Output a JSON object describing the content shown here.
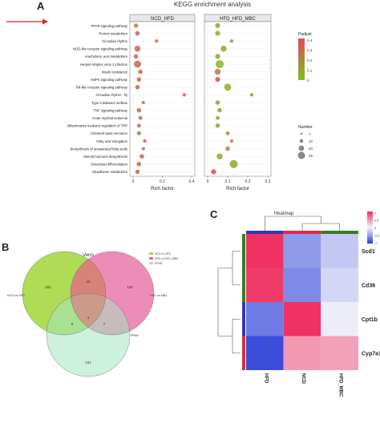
{
  "panels": {
    "a": {
      "letter": "A"
    },
    "b": {
      "letter": "B"
    },
    "c": {
      "letter": "C"
    }
  },
  "chart_data": [
    {
      "type": "scatter",
      "title": "KEGG enrichment analysis",
      "xlabel": "Rich factor",
      "facets": [
        {
          "name": "NCD_HFD",
          "xlim": [
            0,
            0.4
          ],
          "xticks": [
            "0",
            "0.2",
            "0.4"
          ]
        },
        {
          "name": "HFD_HFD_MBC",
          "xlim": [
            0,
            0.3
          ],
          "xticks": [
            "0",
            "0.1",
            "0.2",
            "0.3"
          ]
        }
      ],
      "pathways": [
        "PPAR signaling pathway",
        "Retinol metabolism",
        "Circadian rhythm",
        "NOD-like receptor signaling pathway",
        "Arachidonic acid metabolism",
        "Herpes simplex virus 1 infection",
        "Insulin resistance",
        "AMPK signaling pathway",
        "Toll-like receptor signaling pathway",
        "Circadian rhythm - fly",
        "Type II diabetes mellitus",
        "TNF signaling pathway",
        "Acute myeloid leukemia",
        "Inflammatory mediator regulation of TRP",
        "Channels taste secretion",
        "Fatty acid elongation",
        "Biosynthesis of unsaturated fatty acids",
        "Steroid hormone biosynthesis",
        "Osteoclast differentiation",
        "Glutathione metabolism"
      ],
      "series": [
        {
          "facet": "NCD_HFD",
          "x": [
            0.02,
            0.03,
            0.16,
            0.03,
            0.02,
            0.03,
            0.05,
            0.04,
            0.03,
            0.35,
            0.07,
            0.04,
            0.05,
            0.04,
            0.04,
            0.08,
            0.07,
            0.06,
            0.04,
            0.03
          ],
          "size": [
            5,
            5,
            3,
            8,
            5,
            10,
            5,
            5,
            5,
            3,
            3,
            5,
            4,
            4,
            4,
            3,
            3,
            5,
            5,
            5
          ],
          "padj": [
            0.2,
            0.3,
            0.3,
            0.3,
            0.3,
            0.3,
            0.3,
            0.3,
            0.3,
            0.3,
            0.3,
            0.3,
            0.3,
            0.3,
            0.3,
            0.3,
            0.3,
            0.3,
            0.3,
            0.3
          ]
        },
        {
          "facet": "HFD_HFD_MBC",
          "x": [
            0.05,
            0.05,
            0.12,
            0.08,
            0.05,
            0.06,
            0.05,
            0.05,
            0.1,
            0.22,
            0.05,
            0.06,
            0.05,
            0.05,
            0.1,
            0.12,
            0.1,
            0.06,
            0.13,
            0.03
          ],
          "size": [
            6,
            6,
            3,
            8,
            6,
            12,
            8,
            6,
            10,
            3,
            5,
            5,
            4,
            5,
            4,
            3,
            5,
            8,
            12,
            6
          ],
          "padj": [
            0.1,
            0.1,
            0.2,
            0.1,
            0.1,
            0.05,
            0.25,
            0.38,
            0.1,
            0.2,
            0.1,
            0.1,
            0.1,
            0.1,
            0.2,
            0.25,
            0.2,
            0.1,
            0.1,
            0.4
          ]
        }
      ],
      "legend_padj": {
        "title": "Padjust",
        "ticks": [
          "0.4",
          "0.3",
          "0.2",
          "0.1",
          "0"
        ]
      },
      "legend_size": {
        "title": "Number",
        "items": [
          "7",
          "10",
          "20",
          "25"
        ]
      },
      "colors": {
        "high": "#e0485c",
        "low": "#7ec31e"
      }
    },
    {
      "type": "venn",
      "title": "Venn",
      "legend": [
        "NCD vs HFD",
        "HFD vs HFD_MBC",
        "PPAR"
      ],
      "set_labels": {
        "left": "NCD vs HFD",
        "right": "HFD vs MBC",
        "bottom": "PPAR"
      },
      "regions": {
        "left_only": "262",
        "right_only": "180",
        "left_right": "18",
        "left_bottom": "6",
        "right_bottom": "7",
        "center": "4",
        "bottom_only": "231"
      },
      "colors": {
        "left": "#a5d843",
        "right": "#e7679f",
        "bottom": "#a5e4c3",
        "overlap": "#d9826c"
      }
    },
    {
      "type": "heatmap",
      "title": "Heatmap",
      "columns": [
        "HFD",
        "NCD",
        "HFD_MBC"
      ],
      "rows": [
        "Scd1",
        "Cd36",
        "Cpt1b",
        "Cyp7a1"
      ],
      "values": [
        [
          1.15,
          -0.6,
          -0.3
        ],
        [
          1.1,
          -0.7,
          -0.2
        ],
        [
          -0.8,
          1.15,
          -0.05
        ],
        [
          -1.1,
          0.55,
          0.5
        ]
      ],
      "scale_ticks": [
        "1",
        "0.5",
        "0",
        "-0.5",
        "-1"
      ],
      "column_group_colors": [
        "#2d39b8",
        "#e0294b",
        "#3b7d1f"
      ],
      "row_group_colors": [
        "#3b7d1f",
        "#3b7d1f",
        "#2d39b8",
        "#e0294b"
      ]
    }
  ]
}
